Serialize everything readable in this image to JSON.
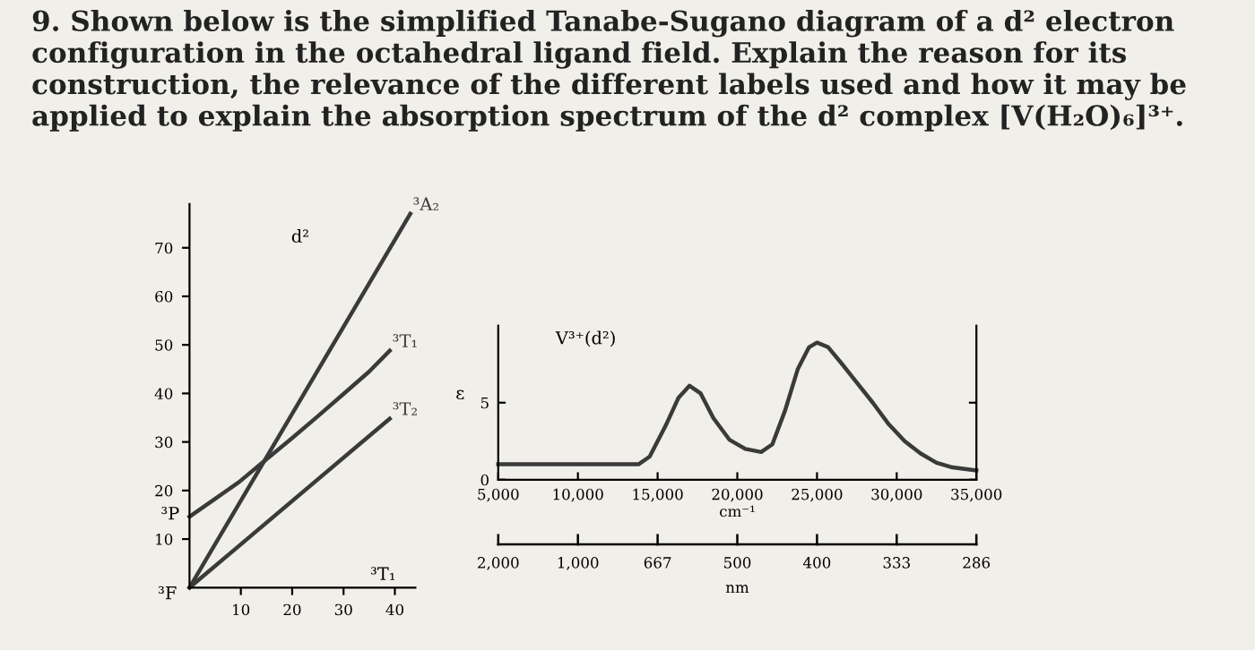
{
  "chart_data": [
    {
      "type": "line",
      "title": "9. Shown below is the simplified Tanabe-Sugano diagram of a d² electron configuration in the octahedral ligand field. Explain the reason for its construction, the relevance of the different labels used and how it may be applied to explain the absorption spectrum of the d² complex [V(H₂O)₆]³⁺.",
      "xlim": [
        0,
        44
      ],
      "ylim": [
        0,
        79
      ],
      "xticks": [
        10,
        20,
        30,
        40
      ],
      "yticks": [
        10,
        20,
        30,
        40,
        50,
        60,
        70
      ],
      "grid": false,
      "legend": false,
      "series": [
        {
          "name": "³A₂",
          "color": "#3a3a3a",
          "x": [
            0,
            43
          ],
          "values": [
            0,
            77
          ]
        },
        {
          "name": "³T₁",
          "color": "#3a3a3a",
          "x": [
            0,
            5,
            9.6,
            14.5,
            20,
            25,
            30,
            35,
            39
          ],
          "values": [
            14.6,
            18.3,
            21.7,
            26,
            30.8,
            35.3,
            39.9,
            44.5,
            48.8
          ]
        },
        {
          "name": "³T₂",
          "color": "#3a3a3a",
          "x": [
            0,
            39
          ],
          "values": [
            0,
            34.8
          ]
        }
      ],
      "annotations": [
        "d²",
        {
          "text": "³P",
          "x": 0,
          "y": 15
        },
        "³F",
        "³T₁"
      ]
    },
    {
      "type": "line",
      "xlabel": "cm⁻¹",
      "ylabel": "ε",
      "xlim": [
        5000,
        35000
      ],
      "ylim": [
        0,
        10
      ],
      "xticks": [
        {
          "value": 5000,
          "label": "5,000"
        },
        {
          "value": 10000,
          "label": "10,000"
        },
        {
          "value": 15000,
          "label": "15,000"
        },
        {
          "value": 20000,
          "label": "20,000"
        },
        {
          "value": 25000,
          "label": "25,000"
        },
        {
          "value": 30000,
          "label": "30,000"
        },
        {
          "value": 35000,
          "label": "35,000"
        }
      ],
      "yticks": [
        0,
        5
      ],
      "grid": false,
      "legend": false,
      "series": [
        {
          "color": "#3a3a3a",
          "x": [
            5000,
            10000,
            13800,
            14500,
            15500,
            16300,
            17000,
            17700,
            18500,
            19500,
            20500,
            21500,
            22200,
            23000,
            23800,
            24500,
            25000,
            25700,
            26500,
            27500,
            28500,
            29500,
            30500,
            31500,
            32500,
            33500,
            35000
          ],
          "values": [
            1.0,
            1.0,
            1.0,
            1.5,
            3.5,
            5.3,
            6.1,
            5.6,
            4.0,
            2.6,
            2.0,
            1.8,
            2.3,
            4.5,
            7.2,
            8.6,
            8.9,
            8.6,
            7.6,
            6.3,
            5.0,
            3.6,
            2.5,
            1.7,
            1.1,
            0.8,
            0.6
          ]
        }
      ],
      "annotations": [
        "V³⁺(d²)",
        "2,000",
        "1,000",
        "667",
        "500",
        "400",
        "333",
        "286",
        "nm"
      ]
    }
  ]
}
